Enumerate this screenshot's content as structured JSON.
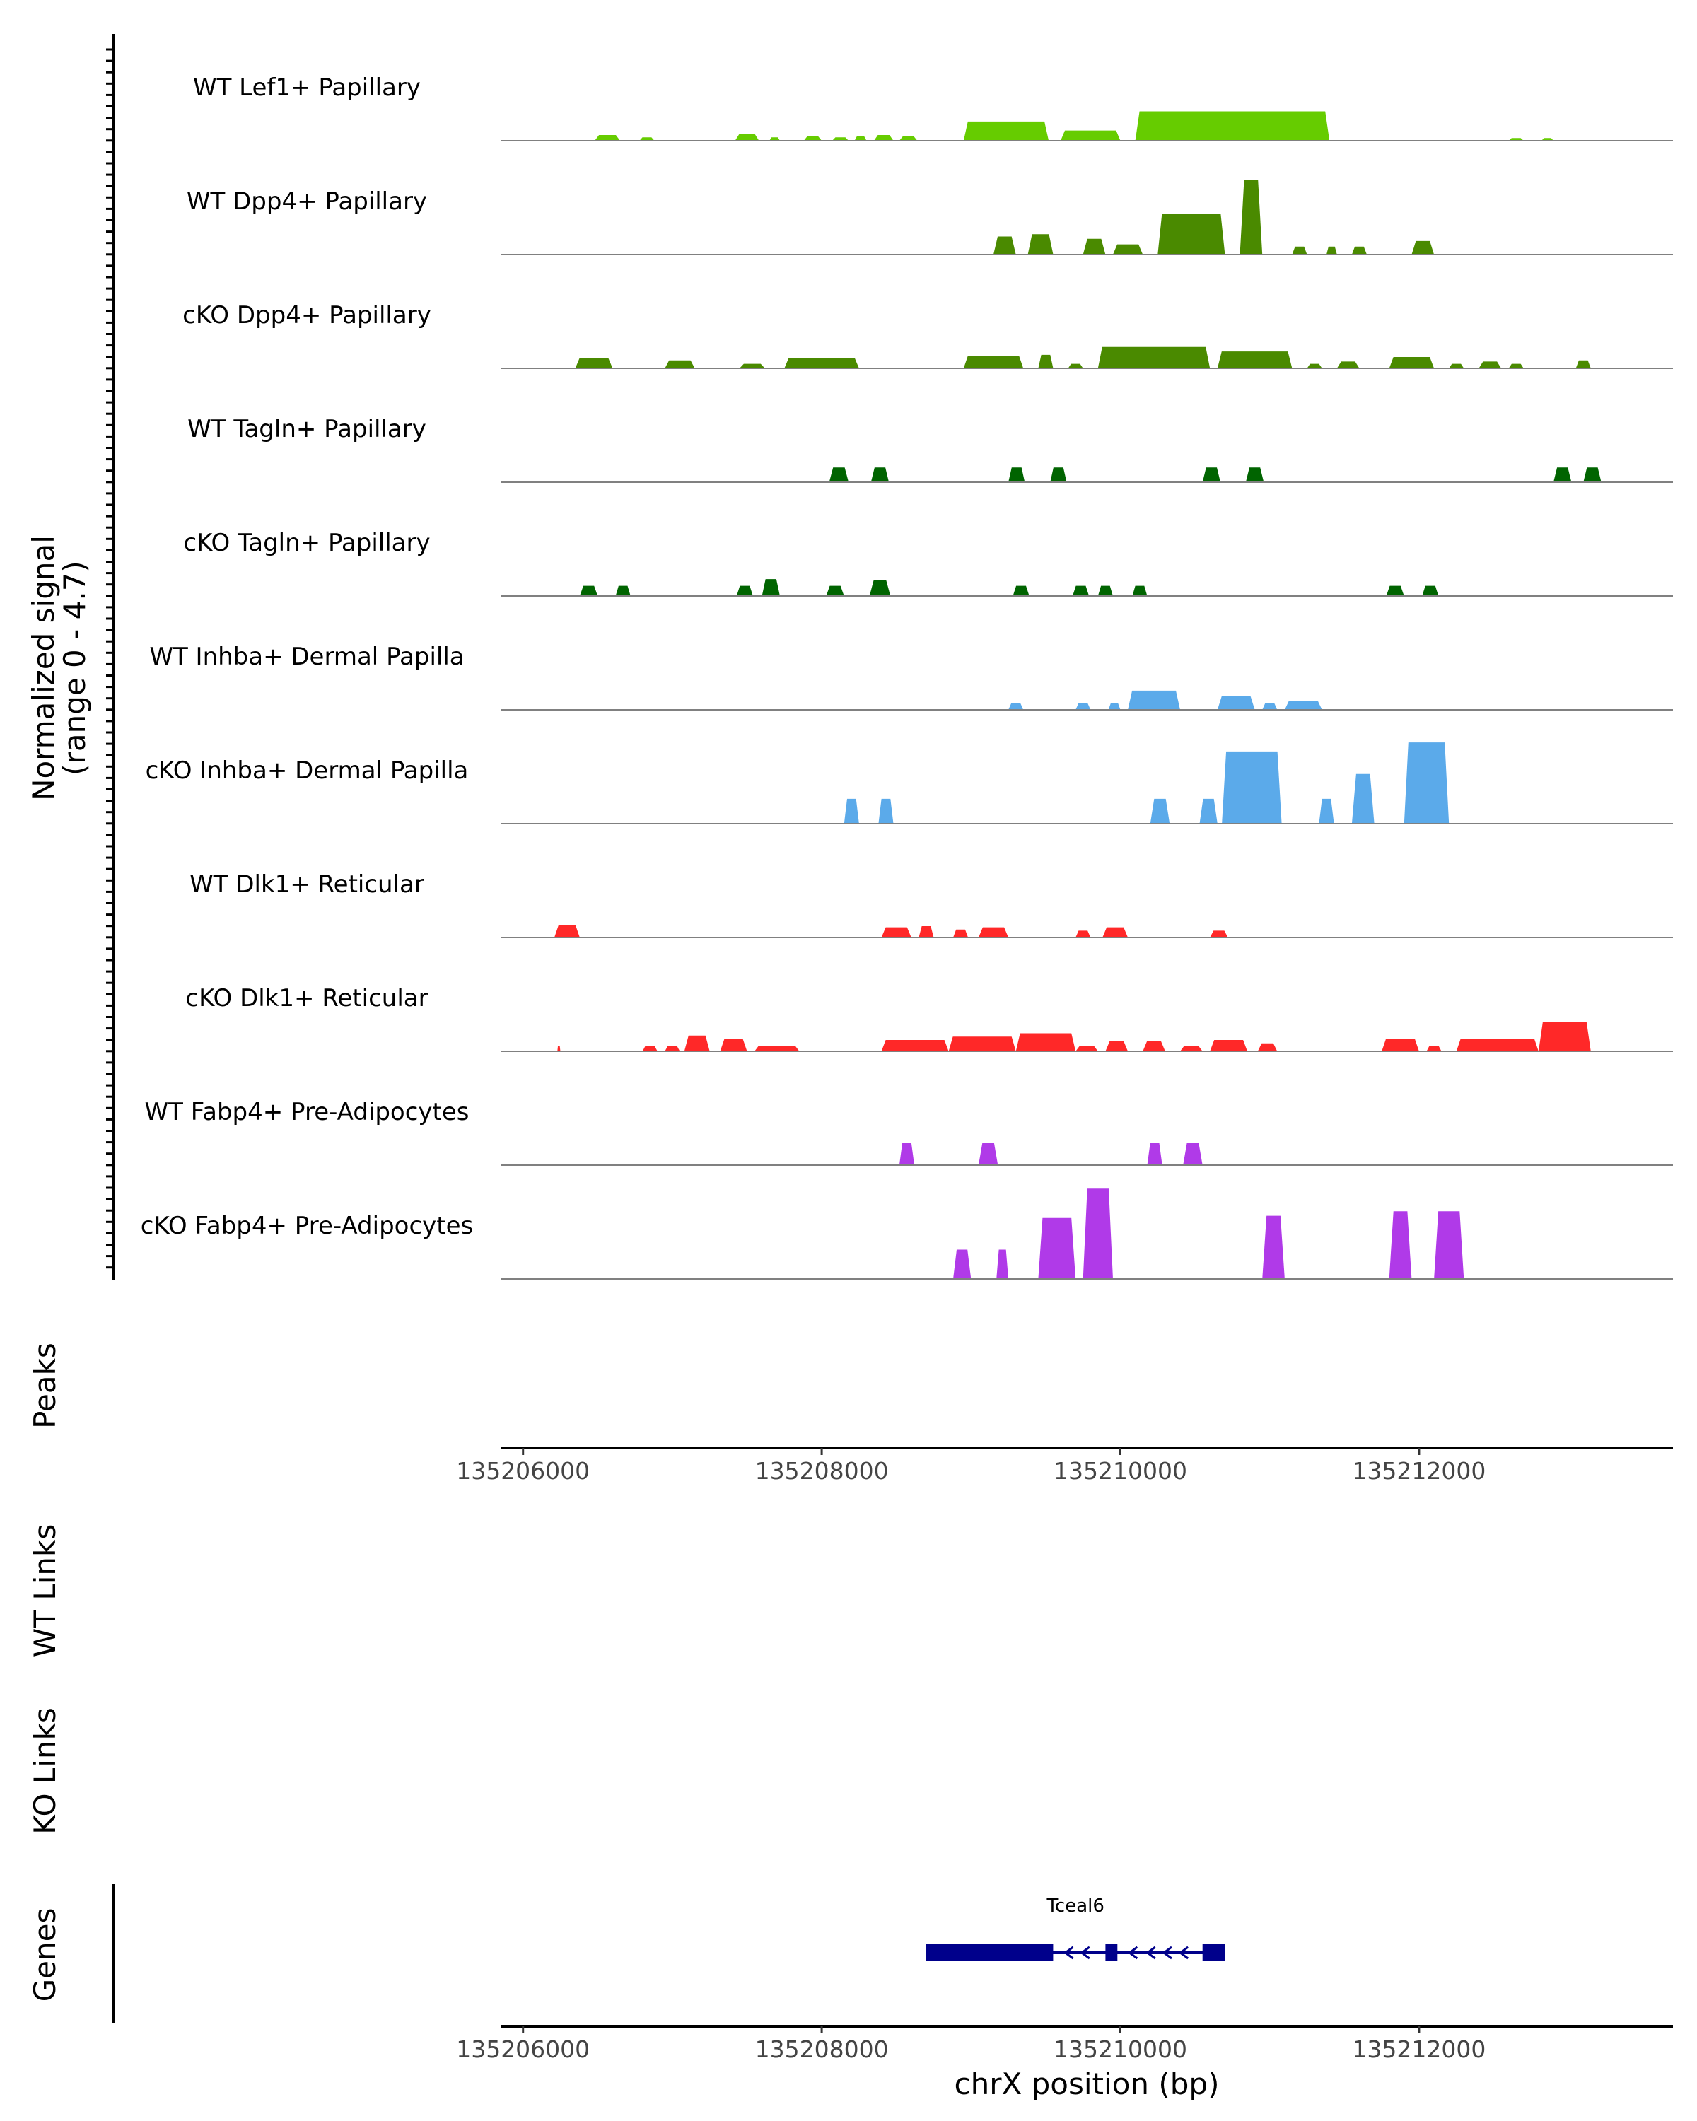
{
  "chart_data": {
    "type": "area",
    "title": "",
    "y_axis": {
      "label_line1": "Normalized signal",
      "label_line2": "(range 0 - 4.7)",
      "ylim": [
        0,
        4.7
      ]
    },
    "xlim": [
      135205850,
      135213700
    ],
    "x_ticks": [
      {
        "value": 135206000,
        "label": "135206000"
      },
      {
        "value": 135208000,
        "label": "135208000"
      },
      {
        "value": 135210000,
        "label": "135210000"
      },
      {
        "value": 135212000,
        "label": "135212000"
      }
    ],
    "xlabel": "chrX position (bp)",
    "track_labels": {
      "peaks": "Peaks",
      "wt_links": "WT Links",
      "ko_links": "KO Links",
      "genes": "Genes"
    },
    "series": [
      {
        "name": "WT Lef1+ Papillary",
        "color": "#66CC00",
        "blocks": [
          [
            135206480,
            135206650,
            0.25
          ],
          [
            135206780,
            135206880,
            0.15
          ],
          [
            135207420,
            135207580,
            0.3
          ],
          [
            135207650,
            135207720,
            0.15
          ],
          [
            135207880,
            135208000,
            0.2
          ],
          [
            135208070,
            135208180,
            0.15
          ],
          [
            135208220,
            135208300,
            0.2
          ],
          [
            135208350,
            135208480,
            0.25
          ],
          [
            135208520,
            135208640,
            0.2
          ],
          [
            135208950,
            135209520,
            0.85
          ],
          [
            135209600,
            135210000,
            0.45
          ],
          [
            135210100,
            135211400,
            1.3
          ],
          [
            135212600,
            135212700,
            0.12
          ],
          [
            135212820,
            135212900,
            0.12
          ]
        ]
      },
      {
        "name": "WT Dpp4+ Papillary",
        "color": "#4A8A00",
        "blocks": [
          [
            135209150,
            135209300,
            0.8
          ],
          [
            135209380,
            135209550,
            0.9
          ],
          [
            135209750,
            135209900,
            0.7
          ],
          [
            135209950,
            135210150,
            0.45
          ],
          [
            135210250,
            135210700,
            1.8
          ],
          [
            135210800,
            135210950,
            3.3
          ],
          [
            135211150,
            135211250,
            0.35
          ],
          [
            135211380,
            135211450,
            0.35
          ],
          [
            135211550,
            135211650,
            0.35
          ],
          [
            135211950,
            135212100,
            0.6
          ]
        ]
      },
      {
        "name": "cKO Dpp4+ Papillary",
        "color": "#4A8A00",
        "blocks": [
          [
            135206350,
            135206600,
            0.45
          ],
          [
            135206950,
            135207150,
            0.35
          ],
          [
            135207450,
            135207620,
            0.2
          ],
          [
            135207750,
            135208250,
            0.45
          ],
          [
            135208950,
            135209350,
            0.55
          ],
          [
            135209450,
            135209550,
            0.6
          ],
          [
            135209650,
            135209750,
            0.2
          ],
          [
            135209850,
            135210600,
            0.95
          ],
          [
            135210650,
            135211150,
            0.75
          ],
          [
            135211250,
            135211350,
            0.2
          ],
          [
            135211450,
            135211600,
            0.3
          ],
          [
            135211800,
            135212100,
            0.5
          ],
          [
            135212200,
            135212300,
            0.2
          ],
          [
            135212400,
            135212550,
            0.3
          ],
          [
            135212600,
            135212700,
            0.2
          ],
          [
            135213050,
            135213150,
            0.35
          ]
        ]
      },
      {
        "name": "WT Tagln+ Papillary",
        "color": "#006400",
        "blocks": [
          [
            135208050,
            135208180,
            0.65
          ],
          [
            135208330,
            135208450,
            0.65
          ],
          [
            135209250,
            135209360,
            0.65
          ],
          [
            135209530,
            135209640,
            0.65
          ],
          [
            135210550,
            135210670,
            0.65
          ],
          [
            135210840,
            135210960,
            0.65
          ],
          [
            135212900,
            135213020,
            0.65
          ],
          [
            135213100,
            135213220,
            0.65
          ]
        ]
      },
      {
        "name": "cKO Tagln+ Papillary",
        "color": "#006400",
        "blocks": [
          [
            135206380,
            135206500,
            0.45
          ],
          [
            135206620,
            135206720,
            0.45
          ],
          [
            135207430,
            135207540,
            0.45
          ],
          [
            135207600,
            135207720,
            0.75
          ],
          [
            135208030,
            135208150,
            0.45
          ],
          [
            135208320,
            135208460,
            0.7
          ],
          [
            135209280,
            135209390,
            0.45
          ],
          [
            135209680,
            135209790,
            0.45
          ],
          [
            135209850,
            135209950,
            0.45
          ],
          [
            135210080,
            135210180,
            0.45
          ],
          [
            135211780,
            135211900,
            0.45
          ],
          [
            135212020,
            135212130,
            0.45
          ]
        ]
      },
      {
        "name": "WT Inhba+ Dermal Papilla",
        "color": "#5BAAEA",
        "blocks": [
          [
            135209250,
            135209350,
            0.3
          ],
          [
            135209700,
            135209800,
            0.3
          ],
          [
            135209920,
            135210000,
            0.3
          ],
          [
            135210050,
            135210400,
            0.85
          ],
          [
            135210650,
            135210900,
            0.6
          ],
          [
            135210950,
            135211050,
            0.3
          ],
          [
            135211100,
            135211350,
            0.4
          ]
        ]
      },
      {
        "name": "cKO Inhba+ Dermal Papilla",
        "color": "#5BAAEA",
        "blocks": [
          [
            135208150,
            135208250,
            1.1
          ],
          [
            135208380,
            135208480,
            1.1
          ],
          [
            135210200,
            135210330,
            1.1
          ],
          [
            135210530,
            135210650,
            1.1
          ],
          [
            135210680,
            135211080,
            3.2
          ],
          [
            135211330,
            135211430,
            1.1
          ],
          [
            135211550,
            135211700,
            2.2
          ],
          [
            135211900,
            135212200,
            3.6
          ]
        ]
      },
      {
        "name": "WT Dlk1+ Reticular",
        "color": "#FF2828",
        "blocks": [
          [
            135206210,
            135206380,
            0.55
          ],
          [
            135208400,
            135208600,
            0.45
          ],
          [
            135208650,
            135208750,
            0.5
          ],
          [
            135208880,
            135208980,
            0.35
          ],
          [
            135209050,
            135209250,
            0.45
          ],
          [
            135209700,
            135209800,
            0.3
          ],
          [
            135209880,
            135210050,
            0.45
          ],
          [
            135210600,
            135210720,
            0.3
          ]
        ]
      },
      {
        "name": "cKO Dlk1+ Reticular",
        "color": "#FF2828",
        "blocks": [
          [
            135206230,
            135206250,
            0.25
          ],
          [
            135206800,
            135206900,
            0.25
          ],
          [
            135206950,
            135207050,
            0.25
          ],
          [
            135207080,
            135207250,
            0.7
          ],
          [
            135207320,
            135207500,
            0.55
          ],
          [
            135207550,
            135207850,
            0.25
          ],
          [
            135208400,
            135208850,
            0.5
          ],
          [
            135208850,
            135209300,
            0.65
          ],
          [
            135209300,
            135209700,
            0.8
          ],
          [
            135209700,
            135209850,
            0.25
          ],
          [
            135209900,
            135210050,
            0.45
          ],
          [
            135210150,
            135210300,
            0.45
          ],
          [
            135210400,
            135210550,
            0.25
          ],
          [
            135210600,
            135210850,
            0.5
          ],
          [
            135210920,
            135211050,
            0.35
          ],
          [
            135211750,
            135212000,
            0.55
          ],
          [
            135212050,
            135212150,
            0.25
          ],
          [
            135212250,
            135212800,
            0.55
          ],
          [
            135212800,
            135213150,
            1.3
          ]
        ]
      },
      {
        "name": "WT Fabp4+ Pre-Adipocytes",
        "color": "#B03AE8",
        "blocks": [
          [
            135208520,
            135208620,
            1.0
          ],
          [
            135209050,
            135209180,
            1.0
          ],
          [
            135210180,
            135210280,
            1.0
          ],
          [
            135210420,
            135210550,
            1.0
          ]
        ]
      },
      {
        "name": "cKO Fabp4+ Pre-Adipocytes",
        "color": "#B03AE8",
        "blocks": [
          [
            135208880,
            135209000,
            1.3
          ],
          [
            135209170,
            135209250,
            1.3
          ],
          [
            135209450,
            135209700,
            2.7
          ],
          [
            135209750,
            135209950,
            4.0
          ],
          [
            135210950,
            135211100,
            2.8
          ],
          [
            135211800,
            135211950,
            3.0
          ],
          [
            135212100,
            135212300,
            3.0
          ]
        ]
      }
    ],
    "gene": {
      "name": "Tceal6",
      "color": "#00008B",
      "start": 135208700,
      "end": 135210700,
      "strand": "-",
      "exons": [
        [
          135208700,
          135209550
        ],
        [
          135209900,
          135209980
        ],
        [
          135210550,
          135210700
        ]
      ],
      "arrows": [
        135209650,
        135209760,
        135210080,
        135210200,
        135210310,
        135210420
      ]
    }
  }
}
